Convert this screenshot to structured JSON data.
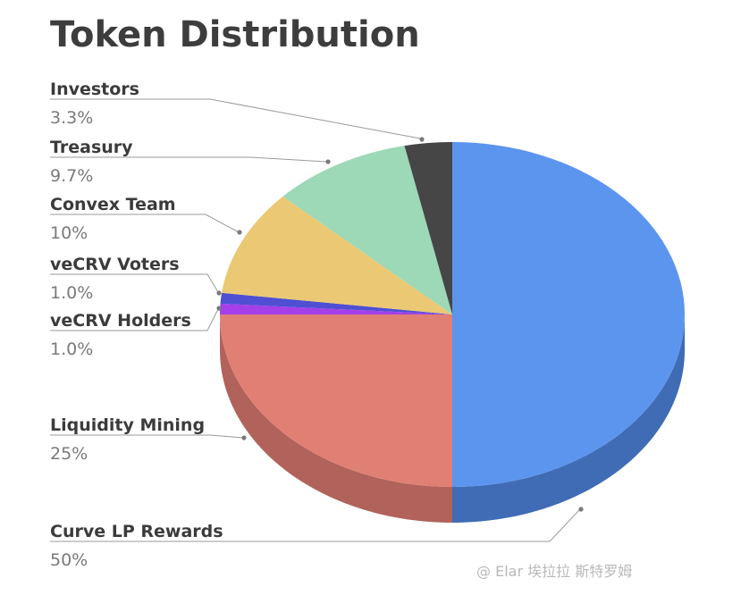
{
  "chart_data": {
    "type": "pie",
    "title": "Token Distribution",
    "slices": [
      {
        "label": "Curve LP Rewards",
        "pct_label": "50%",
        "value": 50,
        "color": "#5b95ee",
        "side_color": "#3f6cb5"
      },
      {
        "label": "Liquidity Mining",
        "pct_label": "25%",
        "value": 25,
        "color": "#e07f74",
        "side_color": "#b1625b"
      },
      {
        "label": "veCRV Holders",
        "pct_label": "1.0%",
        "value": 1.0,
        "color": "#a43fea",
        "side_color": "#7f31b6"
      },
      {
        "label": "veCRV Voters",
        "pct_label": "1.0%",
        "value": 1.0,
        "color": "#4e4fd3",
        "side_color": "#3b3c9e"
      },
      {
        "label": "Convex Team",
        "pct_label": "10%",
        "value": 10,
        "color": "#ebc874",
        "side_color": "#b99d5a"
      },
      {
        "label": "Treasury",
        "pct_label": "9.7%",
        "value": 9.7,
        "color": "#9dd8b7",
        "side_color": "#78a98d"
      },
      {
        "label": "Investors",
        "pct_label": "3.3%",
        "value": 3.3,
        "color": "#464646",
        "side_color": "#2e2e2e"
      }
    ],
    "legend_placement": "left"
  },
  "watermark": "@ Elar 埃拉拉 斯特罗姆"
}
